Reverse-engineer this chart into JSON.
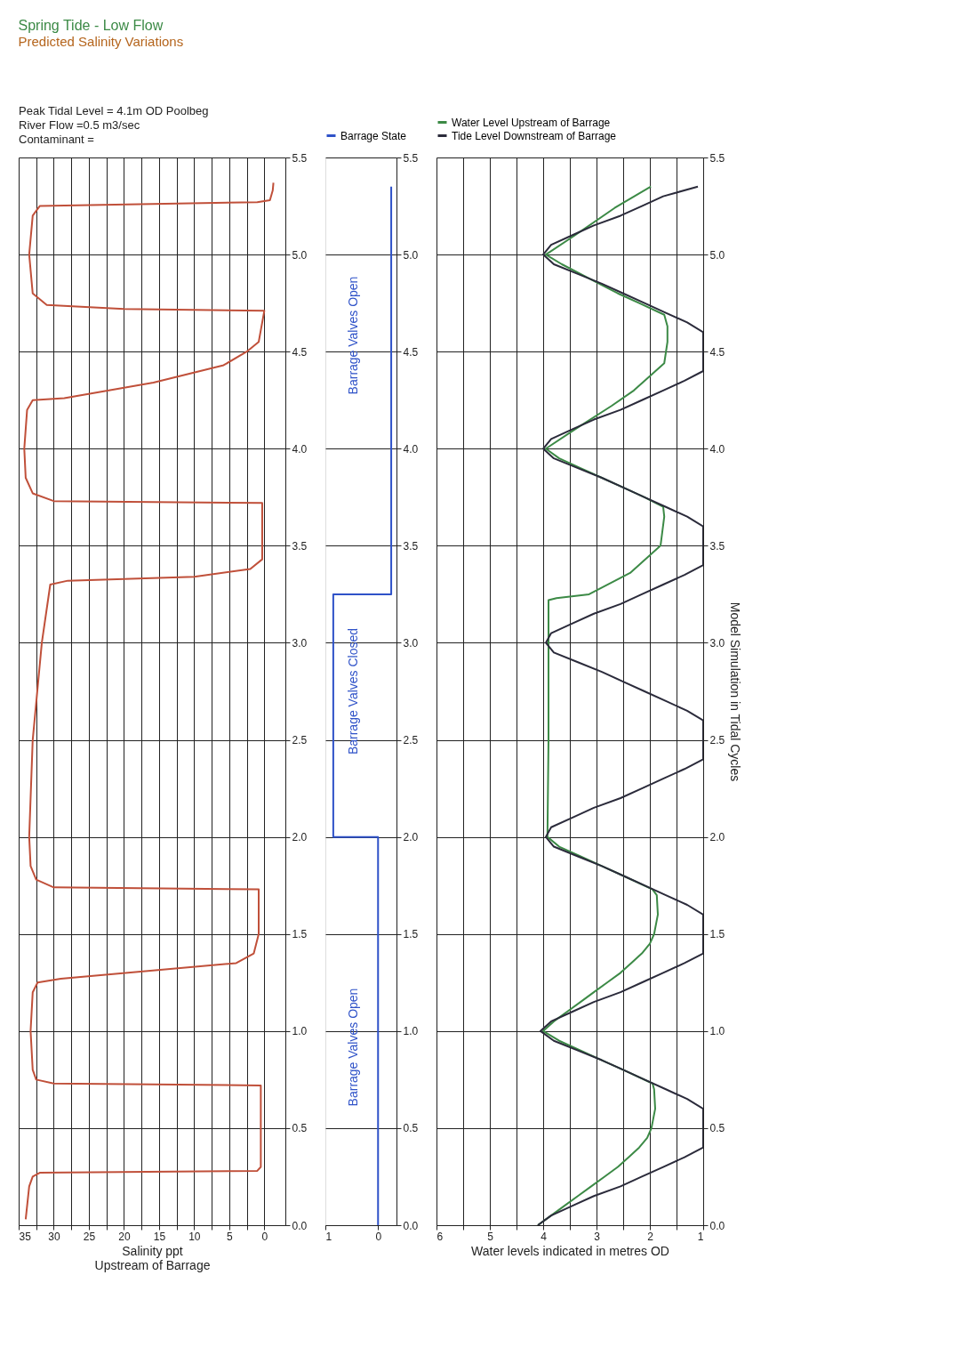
{
  "chart_data": [
    {
      "type": "line",
      "orientation": "horizontal",
      "title": "Spring Tide - Low Flow",
      "subtitle": "Predicted Salinity Variations",
      "xlabel": "Salinity ppt\nUpstream of Barrage",
      "annotations": [
        "Peak Tidal Level = 4.1m OD Poolbeg",
        "River Flow =0.5 m3/sec",
        "Contaminant ="
      ],
      "series": [
        {
          "color": "#c0503a",
          "x": [
            0.03,
            0.2,
            0.25,
            0.27,
            0.28,
            0.3,
            0.72,
            0.73,
            0.75,
            0.8,
            1.0,
            1.2,
            1.25,
            1.27,
            1.35,
            1.4,
            1.5,
            1.73,
            1.74,
            1.78,
            1.85,
            2.0,
            2.5,
            3.0,
            3.3,
            3.32,
            3.34,
            3.38,
            3.43,
            3.72,
            3.73,
            3.77,
            3.85,
            4.0,
            4.2,
            4.25,
            4.26,
            4.34,
            4.43,
            4.5,
            4.55,
            4.71,
            4.72,
            4.74,
            4.8,
            5.0,
            5.2,
            5.25,
            5.27,
            5.28,
            5.33,
            5.37
          ],
          "values": [
            34.0,
            33.5,
            33.0,
            32.0,
            1.0,
            0.5,
            0.5,
            30.0,
            32.5,
            33.0,
            33.3,
            33.0,
            32.3,
            29.0,
            4.0,
            1.5,
            0.8,
            0.8,
            30.0,
            32.5,
            33.3,
            33.5,
            33.0,
            31.7,
            30.5,
            28.0,
            10.0,
            2.0,
            0.3,
            0.3,
            30.0,
            33.0,
            34.0,
            34.2,
            33.8,
            33.0,
            28.5,
            15.8,
            5.8,
            2.5,
            0.8,
            0.0,
            20.0,
            31.0,
            33.0,
            33.5,
            33.0,
            32.0,
            1.0,
            -0.8,
            -1.2,
            -1.3
          ]
        }
      ],
      "xlim": [
        35,
        -3
      ],
      "xticks": [
        35,
        {
          "value": 32.5,
          "label": null
        },
        30,
        {
          "value": 27.5,
          "label": null
        },
        25,
        {
          "value": 22.5,
          "label": null
        },
        20,
        {
          "value": 17.5,
          "label": null
        },
        15,
        {
          "value": 12.5,
          "label": null
        },
        10,
        {
          "value": 7.5,
          "label": null
        },
        5,
        {
          "value": 2.5,
          "label": null
        },
        0
      ],
      "ylim": [
        0,
        5.5
      ],
      "yticks": [
        {
          "value": 0,
          "label": "0.0"
        },
        0.5,
        {
          "value": 1,
          "label": "1.0"
        },
        1.5,
        {
          "value": 2,
          "label": "2.0"
        },
        2.5,
        {
          "value": 3,
          "label": "3.0"
        },
        3.5,
        {
          "value": 4,
          "label": "4.0"
        },
        4.5,
        {
          "value": 5,
          "label": "5.0"
        },
        5.5
      ],
      "grid": true
    },
    {
      "type": "line",
      "orientation": "horizontal",
      "annotations": [
        "Barrage Valves Open",
        "Barrage Valves Closed",
        "Barrage Valves Open"
      ],
      "series": [
        {
          "name": "Barrage State",
          "color": "#2f52c8",
          "x": [
            0,
            2,
            2,
            3.25,
            3.25,
            5.35
          ],
          "values": [
            0,
            0,
            0.85,
            0.85,
            -0.25,
            -0.25
          ]
        }
      ],
      "xlim": [
        1,
        -0.35
      ],
      "xticks": [
        1,
        0
      ],
      "ylim": [
        0,
        5.5
      ],
      "yticks": [
        {
          "value": 0,
          "label": "0.0"
        },
        0.5,
        {
          "value": 1,
          "label": "1.0"
        },
        1.5,
        {
          "value": 2,
          "label": "2.0"
        },
        2.5,
        {
          "value": 3,
          "label": "3.0"
        },
        3.5,
        {
          "value": 4,
          "label": "4.0"
        },
        4.5,
        {
          "value": 5,
          "label": "5.0"
        },
        5.5
      ],
      "grid": "y",
      "legend": "top"
    },
    {
      "type": "line",
      "orientation": "horizontal",
      "xlabel": "Water levels indicated in metres OD",
      "ylabel": "Model Simulation in Tidal Cycles",
      "series": [
        {
          "name": "Water Level Upstream of Barrage",
          "color": "#3c8a46",
          "x": [
            0,
            0.05,
            0.1,
            0.15,
            0.2,
            0.25,
            0.3,
            0.35,
            0.4,
            0.45,
            0.5,
            0.6,
            0.7,
            0.73,
            0.8,
            0.85,
            0.9,
            0.95,
            1.0,
            1.05,
            1.1,
            1.15,
            1.2,
            1.25,
            1.3,
            1.35,
            1.4,
            1.45,
            1.5,
            1.6,
            1.7,
            1.73,
            1.8,
            1.85,
            1.9,
            1.95,
            2.0,
            2.5,
            3.0,
            3.22,
            3.23,
            3.25,
            3.36,
            3.5,
            3.65,
            3.7,
            3.75,
            3.8,
            3.85,
            3.9,
            3.95,
            4.0,
            4.1,
            4.22,
            4.3,
            4.44,
            4.55,
            4.63,
            4.69,
            4.75,
            4.8,
            4.85,
            4.9,
            4.95,
            5.0,
            5.1,
            5.24,
            5.35
          ],
          "values": [
            4.1,
            3.85,
            3.6,
            3.35,
            3.1,
            2.85,
            2.6,
            2.4,
            2.2,
            2.05,
            1.97,
            1.9,
            1.92,
            1.95,
            2.5,
            2.9,
            3.3,
            3.7,
            4.0,
            3.8,
            3.55,
            3.3,
            3.05,
            2.8,
            2.55,
            2.35,
            2.15,
            2.0,
            1.92,
            1.85,
            1.87,
            1.95,
            2.5,
            2.9,
            3.3,
            3.7,
            3.92,
            3.9,
            3.9,
            3.9,
            3.75,
            3.14,
            2.37,
            1.8,
            1.73,
            1.75,
            2.1,
            2.5,
            2.9,
            3.3,
            3.7,
            3.95,
            3.4,
            2.72,
            2.3,
            1.73,
            1.67,
            1.67,
            1.73,
            2.2,
            2.6,
            2.95,
            3.3,
            3.65,
            3.95,
            3.4,
            2.66,
            1.98
          ]
        },
        {
          "name": "Tide Level Downstream of Barrage",
          "color": "#2b2b3b",
          "x": [
            0,
            0.05,
            0.1,
            0.15,
            0.2,
            0.25,
            0.3,
            0.35,
            0.4,
            0.6,
            0.65,
            0.7,
            0.75,
            0.8,
            0.85,
            0.9,
            0.95,
            1,
            1.05,
            1.1,
            1.15,
            1.2,
            1.25,
            1.3,
            1.35,
            1.4,
            1.6,
            1.65,
            1.7,
            1.75,
            1.8,
            1.85,
            1.9,
            1.95,
            2,
            2.05,
            2.1,
            2.15,
            2.2,
            2.25,
            2.3,
            2.35,
            2.4,
            2.6,
            2.65,
            2.7,
            2.75,
            2.8,
            2.85,
            2.9,
            2.95,
            3,
            3.05,
            3.1,
            3.15,
            3.2,
            3.25,
            3.3,
            3.35,
            3.4,
            3.6,
            3.65,
            3.7,
            3.75,
            3.8,
            3.85,
            3.9,
            3.95,
            4,
            4.05,
            4.1,
            4.15,
            4.2,
            4.25,
            4.3,
            4.35,
            4.4,
            4.6,
            4.65,
            4.7,
            4.75,
            4.8,
            4.85,
            4.9,
            4.95,
            5,
            5.05,
            5.1,
            5.15,
            5.2,
            5.25,
            5.3,
            5.35
          ],
          "values": [
            4.1,
            3.85,
            3.45,
            3.05,
            2.55,
            2.15,
            1.75,
            1.35,
            1.0,
            1.0,
            1.3,
            1.7,
            2.1,
            2.5,
            2.9,
            3.35,
            3.8,
            4.05,
            3.85,
            3.45,
            3.05,
            2.55,
            2.15,
            1.75,
            1.35,
            1.0,
            1.0,
            1.3,
            1.7,
            2.1,
            2.5,
            2.9,
            3.35,
            3.8,
            3.95,
            3.85,
            3.45,
            3.05,
            2.55,
            2.15,
            1.75,
            1.35,
            1.0,
            1.0,
            1.3,
            1.7,
            2.1,
            2.5,
            2.9,
            3.35,
            3.8,
            3.95,
            3.85,
            3.45,
            3.05,
            2.55,
            2.15,
            1.75,
            1.35,
            1.0,
            1.0,
            1.3,
            1.7,
            2.1,
            2.5,
            2.9,
            3.35,
            3.8,
            4.0,
            3.85,
            3.45,
            3.05,
            2.55,
            2.15,
            1.75,
            1.35,
            1.0,
            1.0,
            1.3,
            1.7,
            2.1,
            2.5,
            2.9,
            3.35,
            3.8,
            4.0,
            3.85,
            3.45,
            3.05,
            2.55,
            2.15,
            1.75,
            1.1
          ]
        }
      ],
      "xlim": [
        6,
        1
      ],
      "xticks": [
        6,
        {
          "value": 5.5,
          "label": null
        },
        5,
        {
          "value": 4.5,
          "label": null
        },
        4,
        {
          "value": 3.5,
          "label": null
        },
        3,
        {
          "value": 2.5,
          "label": null
        },
        2,
        {
          "value": 1.5,
          "label": null
        },
        1
      ],
      "ylim": [
        0,
        5.5
      ],
      "yticks": [
        {
          "value": 0,
          "label": "0.0"
        },
        0.5,
        {
          "value": 1,
          "label": "1.0"
        },
        1.5,
        {
          "value": 2,
          "label": "2.0"
        },
        2.5,
        {
          "value": 3,
          "label": "3.0"
        },
        3.5,
        {
          "value": 4,
          "label": "4.0"
        },
        4.5,
        {
          "value": 5,
          "label": "5.0"
        },
        5.5
      ],
      "grid": true,
      "legend": "top"
    }
  ]
}
